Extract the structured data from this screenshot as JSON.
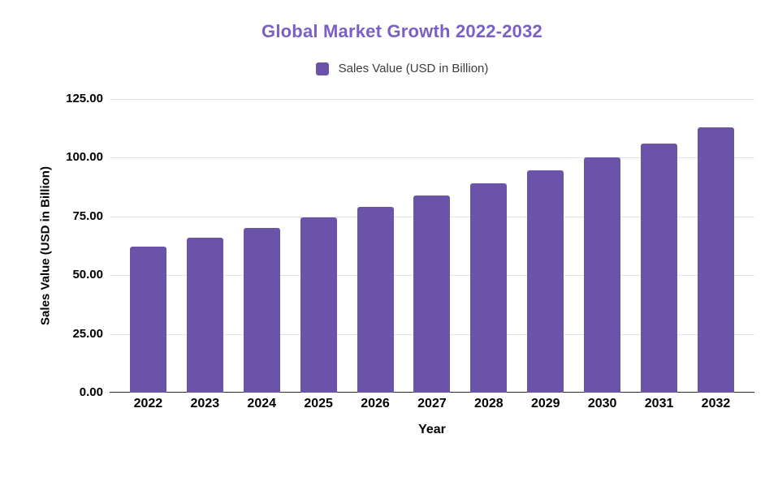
{
  "header": {
    "title": "Global Market Growth 2022-2032"
  },
  "legend": {
    "label": "Sales Value (USD in Billion)"
  },
  "axes": {
    "x_title": "Year",
    "y_title": "Sales Value (USD in Billion)"
  },
  "colors": {
    "title_text": "#7b5fc7",
    "bar": "#6a53a9",
    "gridline": "#e4e4e4",
    "axis_line": "#2e2e2e",
    "tick_text": "#000000",
    "legend_text": "#3c3c3c",
    "background": "#ffffff"
  },
  "chart_data": {
    "type": "bar",
    "title": "Global Market Growth 2022-2032",
    "xlabel": "Year",
    "ylabel": "Sales Value (USD in Billion)",
    "legend_position": "top",
    "grid": "horizontal",
    "categories": [
      "2022",
      "2023",
      "2024",
      "2025",
      "2026",
      "2027",
      "2028",
      "2029",
      "2030",
      "2031",
      "2032"
    ],
    "series": [
      {
        "name": "Sales Value (USD in Billion)",
        "values": [
          62,
          66,
          70,
          74.5,
          79,
          84,
          89,
          94.5,
          100,
          106,
          113
        ]
      }
    ],
    "ylim": [
      0,
      125
    ],
    "yticks": [
      {
        "value": 125,
        "label": "125.00"
      },
      {
        "value": 100,
        "label": "100.00"
      },
      {
        "value": 75,
        "label": "75.00"
      },
      {
        "value": 50,
        "label": "50.00"
      },
      {
        "value": 25,
        "label": "25.00"
      },
      {
        "value": 0,
        "label": "0.00"
      }
    ]
  }
}
